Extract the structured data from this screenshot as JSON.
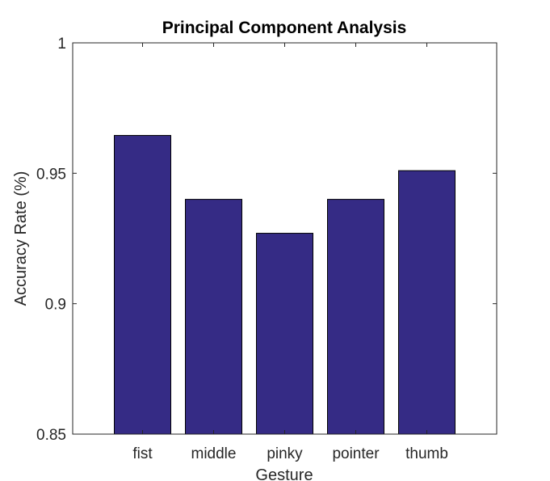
{
  "chart_data": {
    "type": "bar",
    "title": "Principal Component Analysis",
    "xlabel": "Gesture",
    "ylabel": "Accuracy Rate (%)",
    "categories": [
      "fist",
      "middle",
      "pinky",
      "pointer",
      "thumb"
    ],
    "values": [
      0.9645,
      0.94,
      0.927,
      0.94,
      0.951
    ],
    "ylim": [
      0.85,
      1
    ],
    "yticks": [
      0.85,
      0.9,
      0.95,
      1
    ],
    "ytick_labels": [
      "0.85",
      "0.9",
      "0.95",
      "1"
    ],
    "bar_color": "#352b85",
    "grid": false,
    "box": true
  }
}
